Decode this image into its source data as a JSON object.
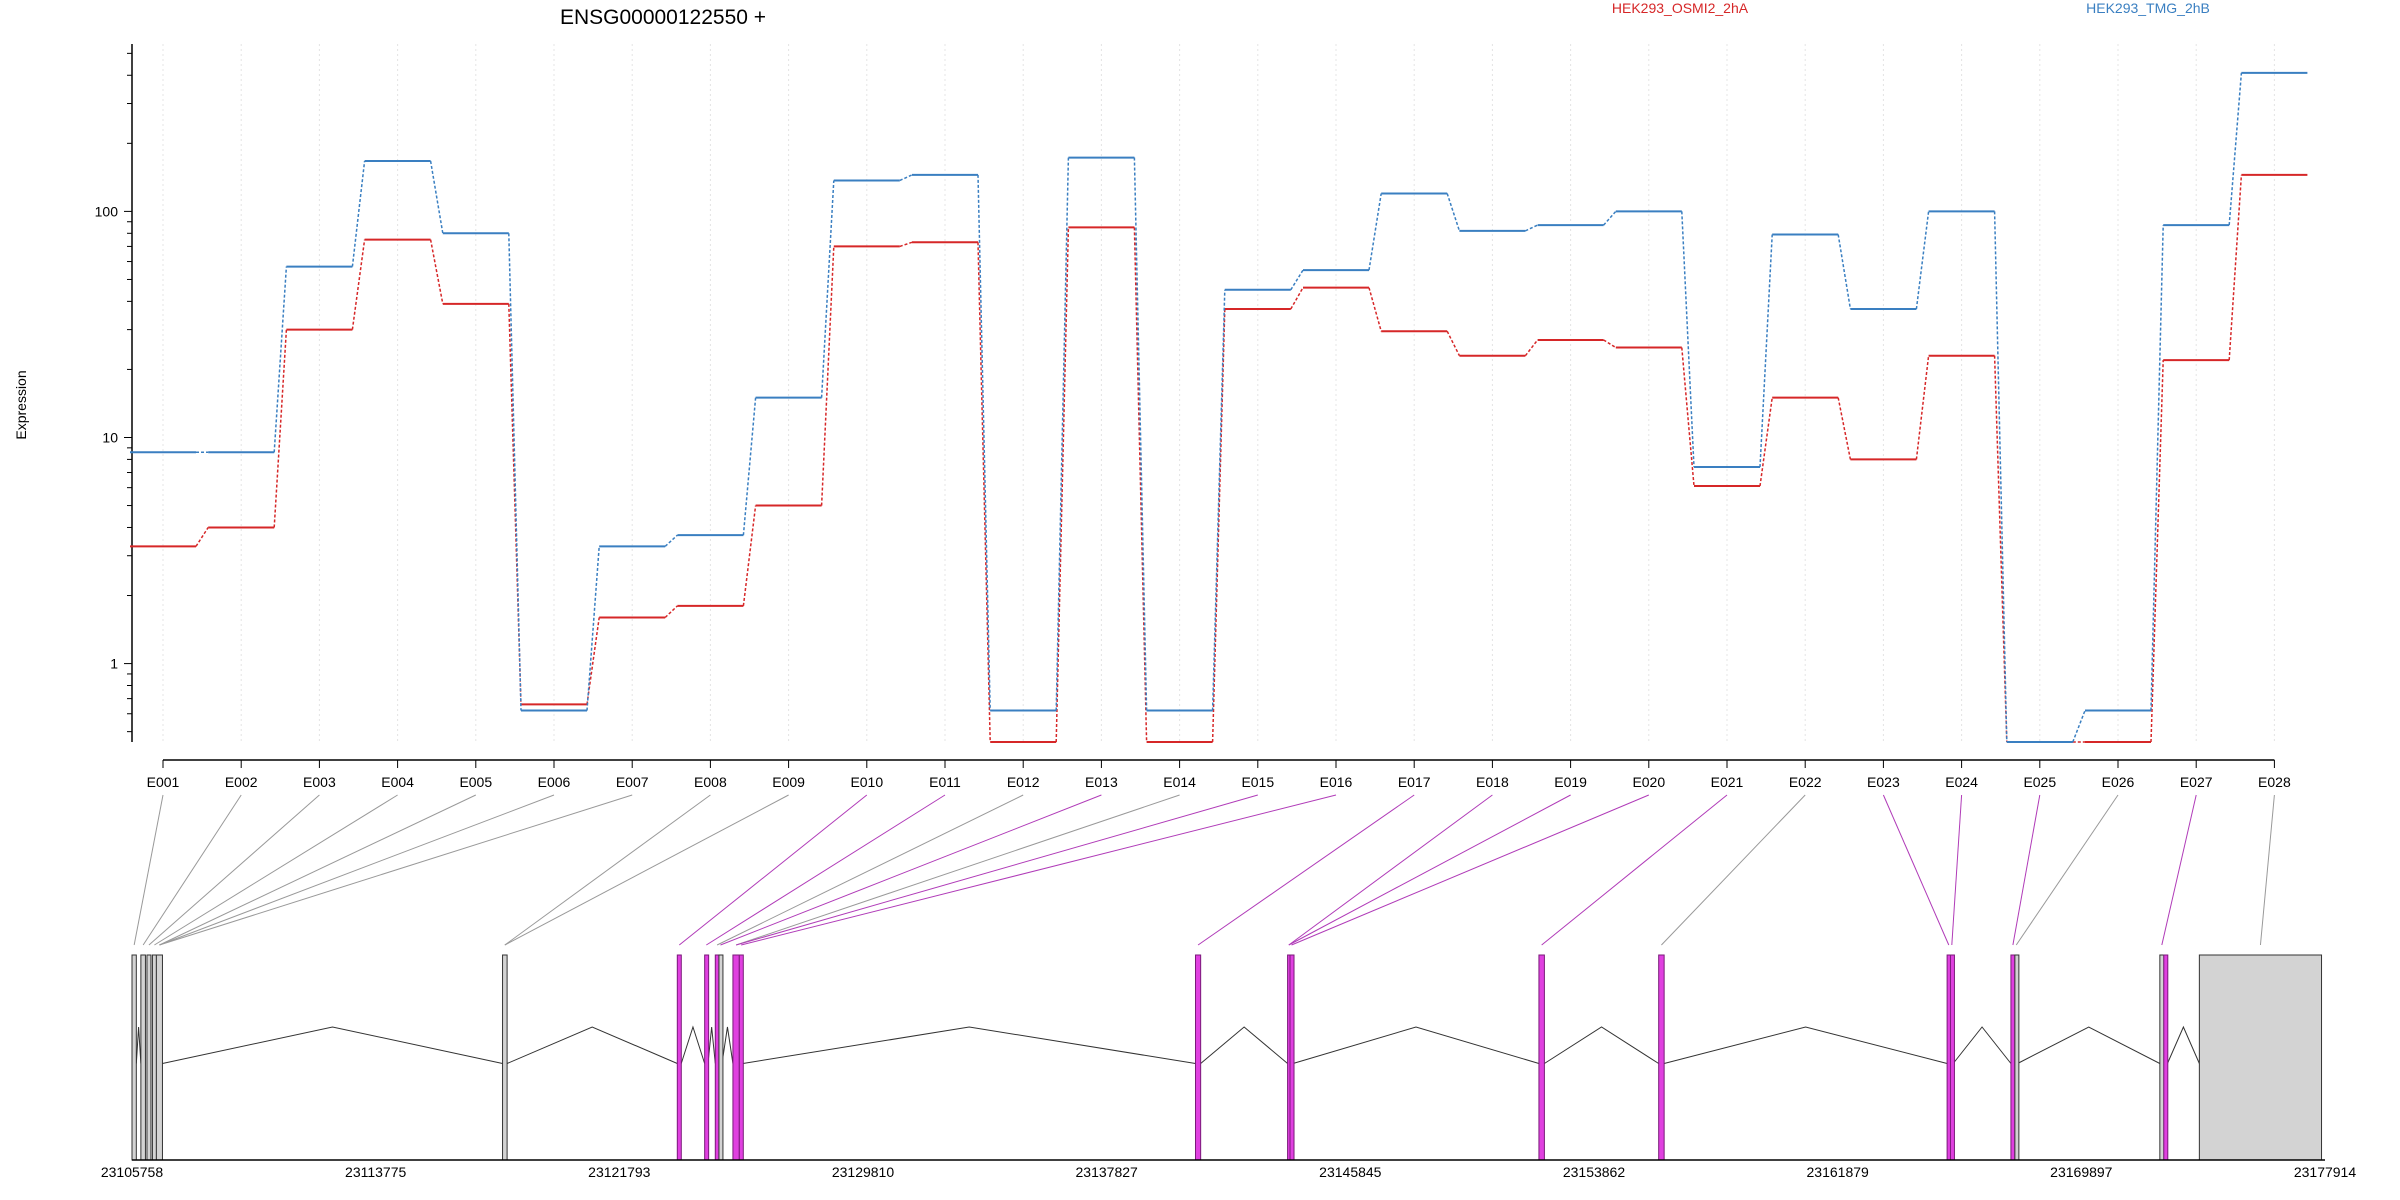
{
  "chart_data": {
    "type": "line",
    "title": "ENSG00000122550 +",
    "ylabel": "Expression",
    "yscale": "log",
    "ylim": [
      0.45,
      550
    ],
    "yticks": [
      1,
      10,
      100
    ],
    "yticklabels": [
      "1",
      "10",
      "100"
    ],
    "grid": "vertical dotted lines at exons",
    "legend_position": "top",
    "categories": [
      "E001",
      "E002",
      "E003",
      "E004",
      "E005",
      "E006",
      "E007",
      "E008",
      "E009",
      "E010",
      "E011",
      "E012",
      "E013",
      "E014",
      "E015",
      "E016",
      "E017",
      "E018",
      "E019",
      "E020",
      "E021",
      "E022",
      "E023",
      "E024",
      "E025",
      "E026",
      "E027",
      "E028"
    ],
    "series": [
      {
        "name": "HEK293_OSMI2_2hA",
        "color": "#d62728",
        "values": [
          3.3,
          4.0,
          30,
          75,
          39,
          0.66,
          1.6,
          1.8,
          5.0,
          70,
          73,
          0.45,
          85,
          0.45,
          37,
          46,
          29.5,
          23,
          27,
          25,
          6.1,
          15,
          8.0,
          23,
          0.45,
          0.45,
          22,
          145
        ]
      },
      {
        "name": "HEK293_TMG_2hB",
        "color": "#3a7fc1",
        "values": [
          8.6,
          8.6,
          57,
          167,
          80,
          0.62,
          3.3,
          3.7,
          15,
          137,
          145,
          0.62,
          173,
          0.62,
          45,
          55,
          120,
          82,
          87,
          100,
          7.4,
          79,
          37,
          100,
          0.45,
          0.62,
          87,
          410
        ]
      }
    ],
    "gene_model": {
      "coordinate_labels": [
        "23105758",
        "23113775",
        "23121793",
        "23129810",
        "23137827",
        "23145845",
        "23153862",
        "23161879",
        "23169897",
        "23177914"
      ],
      "genomic_range": [
        23105758,
        23177914
      ],
      "highlight_color": "#e040e0",
      "normal_color": "#d3d3d3",
      "exons": [
        {
          "start": 23105758,
          "end": 23105900,
          "highlight": false
        },
        {
          "start": 23106050,
          "end": 23106200,
          "highlight": false
        },
        {
          "start": 23106250,
          "end": 23106380,
          "highlight": false
        },
        {
          "start": 23106430,
          "end": 23106560,
          "highlight": false
        },
        {
          "start": 23106560,
          "end": 23106760,
          "highlight": false
        },
        {
          "start": 23117950,
          "end": 23118100,
          "highlight": false
        },
        {
          "start": 23123700,
          "end": 23123830,
          "highlight": true
        },
        {
          "start": 23124600,
          "end": 23124710,
          "highlight": true
        },
        {
          "start": 23124950,
          "end": 23125070,
          "highlight": true
        },
        {
          "start": 23125070,
          "end": 23125170,
          "highlight": false
        },
        {
          "start": 23125530,
          "end": 23125740,
          "highlight": true
        },
        {
          "start": 23125740,
          "end": 23125860,
          "highlight": true
        },
        {
          "start": 23140750,
          "end": 23140920,
          "highlight": true
        },
        {
          "start": 23143780,
          "end": 23143860,
          "highlight": true
        },
        {
          "start": 23143860,
          "end": 23143960,
          "highlight": true
        },
        {
          "start": 23152050,
          "end": 23152230,
          "highlight": true
        },
        {
          "start": 23155990,
          "end": 23156170,
          "highlight": true
        },
        {
          "start": 23165480,
          "end": 23165590,
          "highlight": true
        },
        {
          "start": 23165590,
          "end": 23165680,
          "highlight": true
        },
        {
          "start": 23167580,
          "end": 23167710,
          "highlight": true
        },
        {
          "start": 23167710,
          "end": 23167800,
          "highlight": false
        },
        {
          "start": 23172480,
          "end": 23172610,
          "highlight": false
        },
        {
          "start": 23172610,
          "end": 23172730,
          "highlight": true
        },
        {
          "start": 23173780,
          "end": 23177800,
          "highlight": false
        }
      ],
      "bin_to_exon": [
        0,
        1,
        2,
        3,
        4,
        4,
        4,
        5,
        5,
        6,
        7,
        8,
        9,
        10,
        10,
        11,
        12,
        13,
        13,
        14,
        15,
        16,
        17,
        18,
        19,
        20,
        21,
        23
      ],
      "bin_highlight": [
        false,
        false,
        false,
        false,
        false,
        false,
        false,
        false,
        false,
        true,
        true,
        false,
        true,
        false,
        true,
        true,
        true,
        true,
        true,
        true,
        true,
        false,
        true,
        true,
        true,
        false,
        true,
        false
      ]
    }
  }
}
